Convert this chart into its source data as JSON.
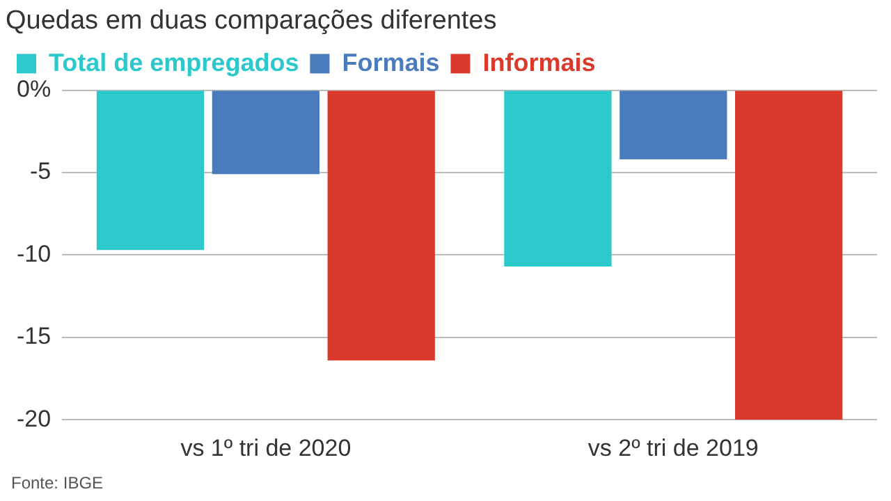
{
  "chart_data": {
    "type": "bar",
    "title": "Quedas em duas comparações diferentes",
    "categories": [
      "vs 1º tri de 2020",
      "vs 2º tri de 2019"
    ],
    "series": [
      {
        "name": "Total de empregados",
        "color": "#2bc8cc",
        "values": [
          -9.7,
          -10.7
        ]
      },
      {
        "name": "Formais",
        "color": "#4a7bbd",
        "values": [
          -5.1,
          -4.2
        ]
      },
      {
        "name": "Informais",
        "color": "#d93a2b",
        "values": [
          -16.4,
          -20.0
        ]
      }
    ],
    "ylim": [
      -20,
      0
    ],
    "yticks": [
      {
        "value": 0,
        "label": "0%"
      },
      -5,
      -10,
      -15,
      -20
    ],
    "grid": "y",
    "legend": "top left",
    "annotations": [
      "Fonte: IBGE"
    ]
  }
}
